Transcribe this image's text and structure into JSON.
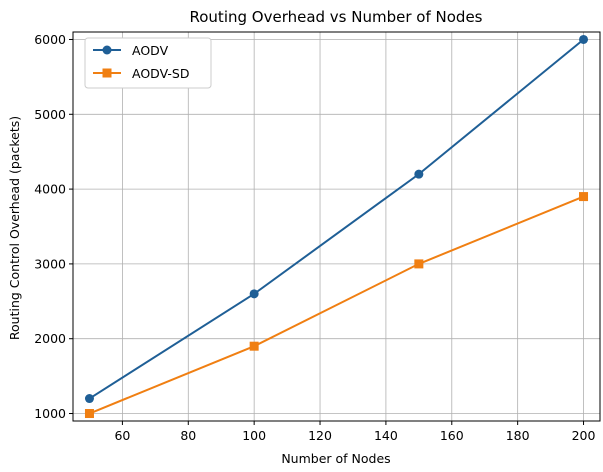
{
  "chart_data": {
    "type": "line",
    "title": "Routing Overhead vs Number of Nodes",
    "xlabel": "Number of Nodes",
    "ylabel": "Routing Control Overhead (packets)",
    "x": [
      50,
      100,
      150,
      200
    ],
    "xlim": [
      45,
      205
    ],
    "ylim": [
      900,
      6100
    ],
    "xticks": [
      60,
      80,
      100,
      120,
      140,
      160,
      180,
      200
    ],
    "yticks": [
      1000,
      2000,
      3000,
      4000,
      5000,
      6000
    ],
    "grid": true,
    "legend_position": "upper-left",
    "series": [
      {
        "name": "AODV",
        "marker": "circle",
        "color": "#1f5f96",
        "values": [
          1200,
          2600,
          4200,
          6000
        ]
      },
      {
        "name": "AODV-SD",
        "marker": "square",
        "color": "#f07f12",
        "values": [
          1000,
          1900,
          3000,
          3900
        ]
      }
    ]
  }
}
